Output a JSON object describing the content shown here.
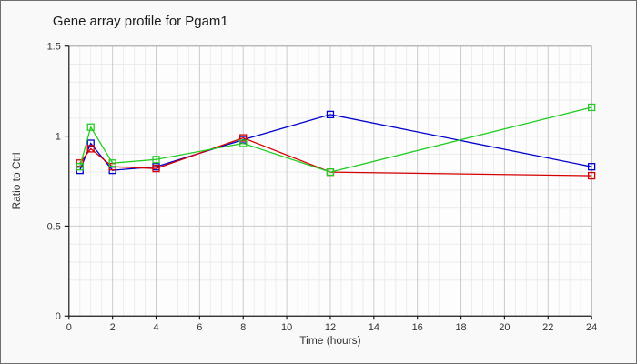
{
  "window": {
    "background": "#f9f9f9",
    "border_color": "#6e6e6e"
  },
  "chart_data": {
    "type": "line",
    "title": "Gene array profile for Pgam1",
    "xlabel": "Time (hours)",
    "ylabel": "Ratio to Ctrl",
    "xlim": [
      0,
      24
    ],
    "ylim": [
      0,
      1.5
    ],
    "x": [
      0.5,
      1,
      2,
      4,
      8,
      12,
      24
    ],
    "series": [
      {
        "name": "blue",
        "color": "#0000cc",
        "values": [
          0.81,
          0.96,
          0.81,
          0.83,
          0.98,
          1.12,
          0.83
        ]
      },
      {
        "name": "red",
        "color": "#d40000",
        "values": [
          0.85,
          0.93,
          0.83,
          0.82,
          0.99,
          0.8,
          0.78
        ]
      },
      {
        "name": "green",
        "color": "#22cc22",
        "values": [
          0.83,
          1.05,
          0.85,
          0.87,
          0.96,
          0.8,
          1.16
        ]
      }
    ],
    "x_ticks": [
      0,
      2,
      4,
      6,
      8,
      10,
      12,
      14,
      16,
      18,
      20,
      22,
      24
    ],
    "y_ticks": [
      0,
      0.5,
      1,
      1.5
    ],
    "x_minor_step": 0.5,
    "y_minor_step": 0.1,
    "grid": true,
    "legend": "none",
    "marker": "open-square",
    "colors": {
      "major_grid": "#cccccc",
      "minor_grid": "#ececec",
      "plot_border": "#b3b3b3",
      "axis": "#1a1a1a",
      "plot_bg": "#fdfdfd"
    }
  }
}
